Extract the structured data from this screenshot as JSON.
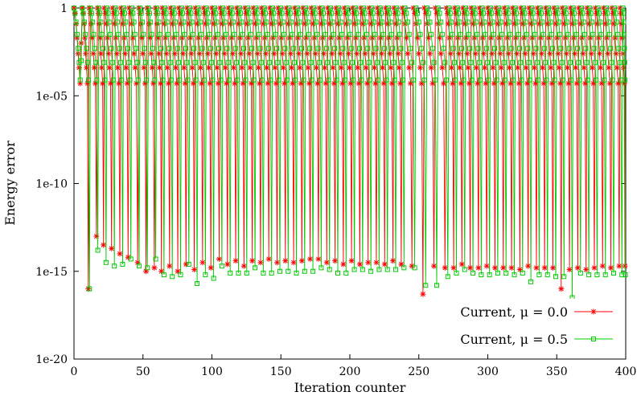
{
  "chart_data": {
    "type": "line",
    "xlabel": "Iteration counter",
    "ylabel": "Energy error",
    "x_range": [
      0,
      400
    ],
    "y_range_log10": [
      -20,
      0
    ],
    "y_scale": "log",
    "x_ticks": [
      "0",
      "50",
      "100",
      "150",
      "200",
      "250",
      "300",
      "350",
      "400"
    ],
    "y_ticks": [
      {
        "label": "1",
        "log10": 0
      },
      {
        "label": "1e-05",
        "log10": -5
      },
      {
        "label": "1e-10",
        "log10": -10
      },
      {
        "label": "1e-15",
        "log10": -15
      },
      {
        "label": "1e-20",
        "log10": -20
      }
    ],
    "legend_position": "bottom-right",
    "series": [
      {
        "name": "Current, μ = 0.0",
        "color": "#ff0000",
        "marker": "star",
        "cycle_starts": [
          0,
          6,
          11,
          17,
          22,
          28,
          34,
          40,
          47,
          53,
          59,
          64,
          70,
          76,
          82,
          88,
          94,
          100,
          106,
          112,
          118,
          124,
          130,
          136,
          142,
          148,
          154,
          160,
          166,
          172,
          178,
          184,
          190,
          196,
          202,
          208,
          214,
          220,
          226,
          232,
          238,
          246,
          254,
          262,
          270,
          276,
          282,
          288,
          294,
          300,
          306,
          312,
          318,
          324,
          330,
          336,
          342,
          348,
          354,
          360,
          366,
          372,
          378,
          384,
          390,
          396
        ],
        "plateau_log10": [
          -0.3,
          -0.9,
          -1.7,
          -2.6,
          -3.4,
          -4.3
        ],
        "final_log10": [
          -2,
          -16,
          -13,
          -13.5,
          -13.7,
          -14,
          -14.2,
          -14.5,
          -15,
          -14.8,
          -15,
          -14.7,
          -15,
          -14.6,
          -14.9,
          -14.5,
          -14.8,
          -14.3,
          -14.6,
          -14.4,
          -14.7,
          -14.4,
          -14.5,
          -14.3,
          -14.5,
          -14.4,
          -14.5,
          -14.4,
          -14.3,
          -14.3,
          -14.5,
          -14.4,
          -14.6,
          -14.4,
          -14.6,
          -14.5,
          -14.5,
          -14.6,
          -14.4,
          -14.6,
          -14.7,
          -16.3,
          -14.7,
          -14.8,
          -14.8,
          -14.6,
          -14.8,
          -14.8,
          -14.7,
          -14.8,
          -14.8,
          -14.8,
          -14.9,
          -14.7,
          -14.8,
          -14.8,
          -14.8,
          -16,
          -14.9,
          -14.8,
          -14.9,
          -14.8,
          -14.7,
          -14.8,
          -14.7,
          -14.7
        ]
      },
      {
        "name": "Current, μ = 0.5",
        "color": "#00cc00",
        "marker": "square",
        "cycle_starts": [
          0,
          6,
          12,
          18,
          24,
          30,
          36,
          42,
          48,
          54,
          60,
          66,
          72,
          78,
          84,
          90,
          96,
          102,
          108,
          114,
          120,
          126,
          132,
          138,
          144,
          150,
          156,
          162,
          168,
          174,
          180,
          186,
          192,
          198,
          204,
          210,
          216,
          222,
          228,
          234,
          240,
          248,
          256,
          264,
          272,
          278,
          284,
          290,
          296,
          302,
          308,
          314,
          320,
          326,
          332,
          338,
          344,
          350,
          356,
          362,
          368,
          374,
          380,
          386,
          392,
          398
        ],
        "plateau_log10": [
          -0.3,
          -0.8,
          -1.5,
          -2.3,
          -3.1,
          -4.1
        ],
        "final_log10": [
          -3,
          -16,
          -13.8,
          -14.5,
          -14.7,
          -14.6,
          -14.3,
          -14.7,
          -14.8,
          -14.3,
          -15.2,
          -15.3,
          -15.2,
          -14.6,
          -15.7,
          -15.2,
          -15.4,
          -14.7,
          -15.1,
          -15.1,
          -15.1,
          -14.8,
          -15.1,
          -15.1,
          -15,
          -15,
          -15.1,
          -15,
          -15,
          -14.8,
          -14.9,
          -15.1,
          -15.1,
          -14.9,
          -14.9,
          -15,
          -14.9,
          -14.9,
          -14.9,
          -14.8,
          -14.8,
          -15.8,
          -15.8,
          -15.3,
          -15.1,
          -14.9,
          -15.1,
          -15.2,
          -15.2,
          -15.1,
          -15.1,
          -15.2,
          -15.1,
          -15.6,
          -15.2,
          -15.2,
          -15.3,
          -15.3,
          -16.5,
          -15.1,
          -15.2,
          -15.2,
          -15.2,
          -15.1,
          -15.2,
          -15.2
        ]
      }
    ]
  }
}
